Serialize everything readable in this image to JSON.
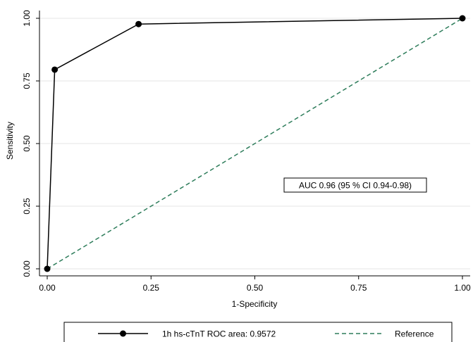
{
  "chart_data": {
    "type": "line",
    "xlabel": "1-Specificity",
    "ylabel": "Sensitivity",
    "xlim": [
      0,
      1
    ],
    "ylim": [
      0,
      1
    ],
    "x_ticks": [
      0,
      0.25,
      0.5,
      0.75,
      1
    ],
    "x_tick_labels": [
      "0.00",
      "0.25",
      "0.50",
      "0.75",
      "1.00"
    ],
    "y_ticks": [
      0,
      0.25,
      0.5,
      0.75,
      1
    ],
    "y_tick_labels": [
      "0.00",
      "0.25",
      "0.50",
      "0.75",
      "1.00"
    ],
    "grid": true,
    "series": [
      {
        "name": "1h hs-cTnT ROC area: 0.9572",
        "style": "solid",
        "markers": true,
        "color": "#000000",
        "x": [
          0,
          0.018,
          0.22,
          1
        ],
        "y": [
          0,
          0.795,
          0.977,
          1
        ]
      },
      {
        "name": "Reference",
        "style": "dashed",
        "markers": false,
        "color": "#2e7d5b",
        "x": [
          0,
          1
        ],
        "y": [
          0,
          1
        ]
      }
    ],
    "annotation": "AUC 0.96 (95 % CI 0.94-0.98)",
    "legend_position": "bottom"
  }
}
